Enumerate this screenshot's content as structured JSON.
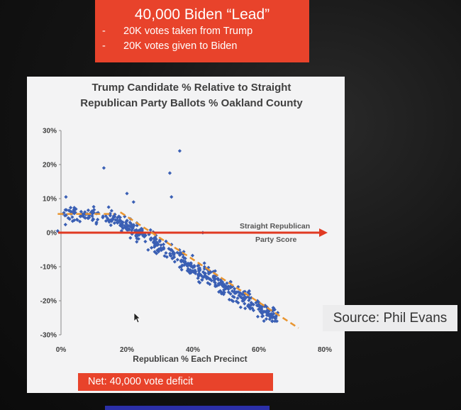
{
  "banner": {
    "title": "40,000  Biden “Lead”",
    "bullets": [
      "20K votes taken from Trump",
      "20K votes given to Biden"
    ],
    "bullet_marker": "-",
    "color": "#e8432b"
  },
  "net_label": "Net:  40,000 vote deficit",
  "source_label": "Source: Phil Evans",
  "chart_data": {
    "type": "scatter",
    "title": [
      "Trump Candidate % Relative to Straight",
      "Republican Party Ballots % Oakland County"
    ],
    "xlabel": "Republican % Each Precinct",
    "ylabel": "",
    "xlim": [
      0,
      80
    ],
    "ylim": [
      -30,
      30
    ],
    "xticks": [
      0,
      20,
      40,
      60,
      80
    ],
    "xtick_labels": [
      "0%",
      "20%",
      "40%",
      "60%",
      "80%"
    ],
    "yticks": [
      30,
      20,
      10,
      0,
      -10,
      -20,
      -30
    ],
    "ytick_labels": [
      "30%",
      "20%",
      "10%",
      "0%",
      "-10%",
      "-20%",
      "-30%"
    ],
    "grid": false,
    "marker_color": "#3a5fb4",
    "annotation": [
      "Straight Republican",
      "Party Score"
    ],
    "reference_line": {
      "y": 0,
      "x_range": [
        0,
        80
      ],
      "color": "#e03a22",
      "label": "Straight Republican Party Score"
    },
    "trend_lines": [
      {
        "x": [
          -1,
          16
        ],
        "y": [
          5.5,
          5.5
        ],
        "color": "#e99530",
        "style": "dashed"
      },
      {
        "x": [
          18,
          72
        ],
        "y": [
          6,
          -28
        ],
        "color": "#e99530",
        "style": "dashed"
      }
    ],
    "outliers": [
      [
        -1,
        0.5
      ],
      [
        1.5,
        10.5
      ],
      [
        13,
        19
      ],
      [
        33,
        17.5
      ],
      [
        33.5,
        10.5
      ],
      [
        36,
        24
      ],
      [
        20,
        11.5
      ],
      [
        22,
        9
      ],
      [
        43,
        0
      ]
    ],
    "bands": [
      {
        "x": [
          0,
          14
        ],
        "center_slope": 0,
        "center_intercept": 5,
        "spread": 3.5,
        "count": 70
      },
      {
        "x": [
          14,
          66
        ],
        "center_slope": -0.6,
        "center_intercept": 14,
        "spread": 4,
        "count": 430
      }
    ]
  }
}
